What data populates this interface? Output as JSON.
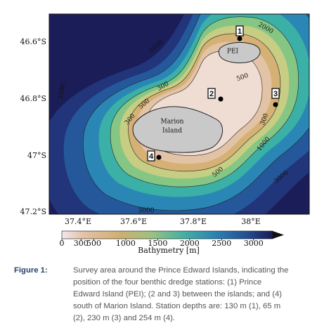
{
  "map": {
    "lat_labels": [
      "46.6°S",
      "46.8°S",
      "47°S",
      "47.2°S"
    ],
    "lon_labels": [
      "37.4°E",
      "37.6°E",
      "37.8°E",
      "38°E"
    ],
    "contour_labels": [
      "2000",
      "2000",
      "2500",
      "300",
      "500",
      "300",
      "500",
      "300",
      "1000",
      "500",
      "3000",
      "3000"
    ],
    "islands": [
      "PEI",
      "Marion",
      "Island"
    ],
    "stations": [
      "1",
      "2",
      "3",
      "4"
    ]
  },
  "colorbar": {
    "label": "Bathymetry [m]",
    "lim": [
      0,
      3300
    ],
    "ticks": [
      0,
      300,
      500,
      1000,
      1500,
      2000,
      2500,
      3000
    ]
  },
  "caption": {
    "label": "Figure 1:",
    "lines": [
      "Survey area around the Prince Edward Islands, indicating the",
      "position of the four benthic dredge stations: (1) Prince",
      "Edward Island (PEI); (2 and 3) between the islands; and (4)",
      "south of Marion Island. Station depths are: 130 m (1), 65 m",
      "(2), 230 m (3) and 254 m (4)."
    ]
  }
}
